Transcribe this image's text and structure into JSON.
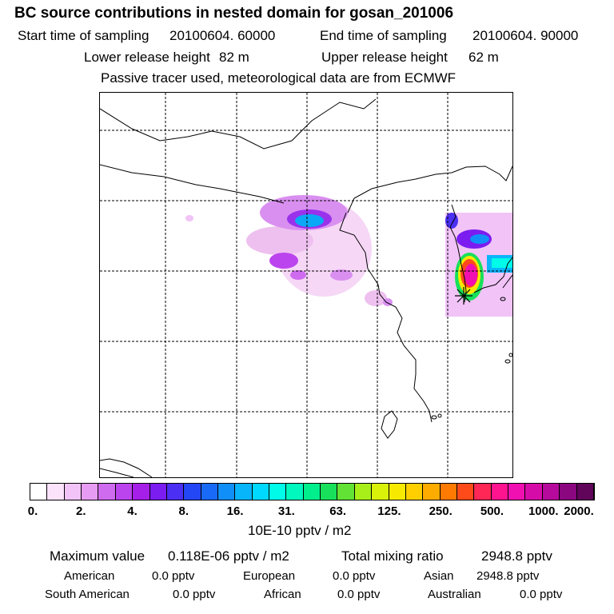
{
  "title": "BC  source contributions in nested domain for gosan_201006",
  "header": {
    "start_label": "Start time of sampling",
    "start_value": "20100604. 60000",
    "end_label": "End time of sampling",
    "end_value": "20100604. 90000",
    "lower_label": "Lower release height",
    "lower_value": "82 m",
    "upper_label": "Upper release height",
    "upper_value": "62 m",
    "note": "Passive tracer used, meteorological data are from ECMWF"
  },
  "colorbar": {
    "colors": [
      "#ffffff",
      "#fbe3fb",
      "#f1c3f7",
      "#e79cf3",
      "#cf6bef",
      "#bb44ee",
      "#a51fe8",
      "#7b1cf0",
      "#4b2ff2",
      "#2447f5",
      "#1a6af8",
      "#118ff9",
      "#08b5fb",
      "#00d9ff",
      "#00fbe9",
      "#00f7bd",
      "#00ef8c",
      "#18e05a",
      "#62e234",
      "#a8ee19",
      "#daf10a",
      "#f7ea00",
      "#ffcf00",
      "#ffac00",
      "#ff7a00",
      "#ff4b1a",
      "#ff2755",
      "#ff1490",
      "#f00fb0",
      "#d60ca8",
      "#b60a9c",
      "#8a0780",
      "#60055a"
    ],
    "tick_labels": [
      "0.",
      "2.",
      "4.",
      "8.",
      "16.",
      "31.",
      "63.",
      "125.",
      "250.",
      "500.",
      "1000.",
      "2000."
    ],
    "unit_label": "10E-10 pptv / m2"
  },
  "summary": {
    "max_label": "Maximum value",
    "max_value": "0.118E-06 pptv / m2",
    "total_label": "Total mixing ratio",
    "total_value": "2948.8 pptv",
    "regions": [
      {
        "name": "American",
        "value": "0.0 pptv"
      },
      {
        "name": "European",
        "value": "0.0 pptv"
      },
      {
        "name": "Asian",
        "value": "2948.8 pptv"
      },
      {
        "name": "South American",
        "value": "0.0 pptv"
      },
      {
        "name": "African",
        "value": "0.0 pptv"
      },
      {
        "name": "Australian",
        "value": "0.0 pptv"
      }
    ]
  }
}
